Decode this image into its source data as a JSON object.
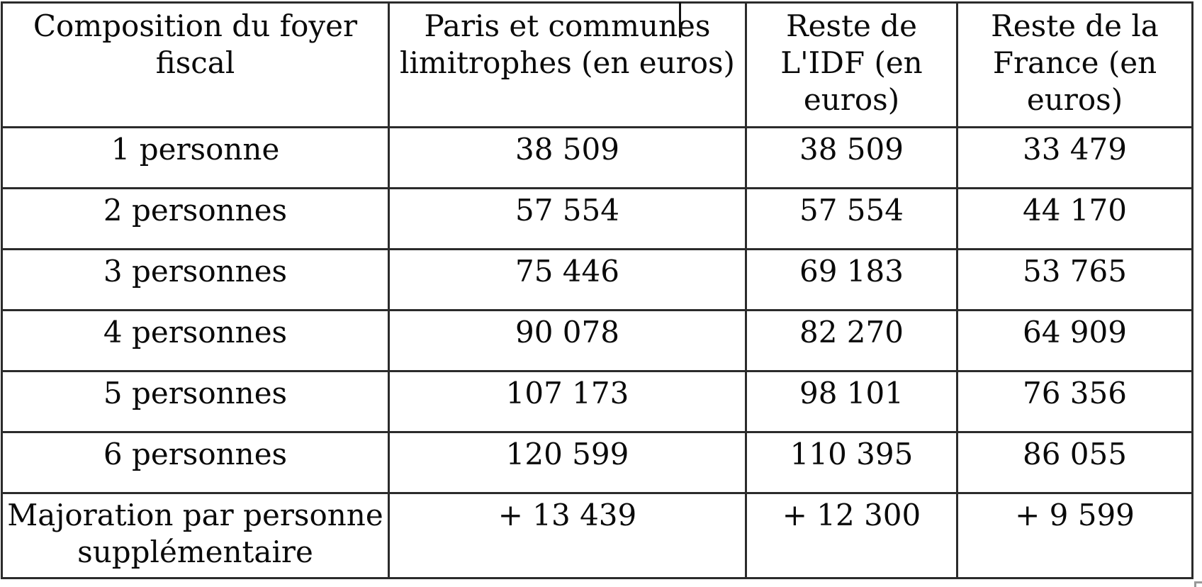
{
  "table": {
    "header": {
      "col1": "Composition du foyer fiscal",
      "col2": "Paris et communes limitrophes (en euros)",
      "col3": "Reste de L'IDF (en euros)",
      "col4": "Reste de la France (en euros)"
    },
    "rows": [
      {
        "label": "1 personne",
        "paris": "38 509",
        "idf": "38 509",
        "france": "33 479"
      },
      {
        "label": "2 personnes",
        "paris": "57 554",
        "idf": "57 554",
        "france": "44 170"
      },
      {
        "label": "3 personnes",
        "paris": "75 446",
        "idf": "69 183",
        "france": "53 765"
      },
      {
        "label": "4 personnes",
        "paris": "90 078",
        "idf": "82 270",
        "france": "64 909"
      },
      {
        "label": "5 personnes",
        "paris": "107 173",
        "idf": "98 101",
        "france": "76 356"
      },
      {
        "label": "6 personnes",
        "paris": "120 599",
        "idf": "110 395",
        "france": "86 055"
      },
      {
        "label": "Majoration par personne supplémentaire",
        "paris": "+ 13 439",
        "idf": "+ 12 300",
        "france": "+ 9 599"
      }
    ]
  },
  "colors": {
    "border": "#2b2b2b",
    "text": "#0a0a0a",
    "background": "#ffffff",
    "corner_mark": "#999999"
  }
}
